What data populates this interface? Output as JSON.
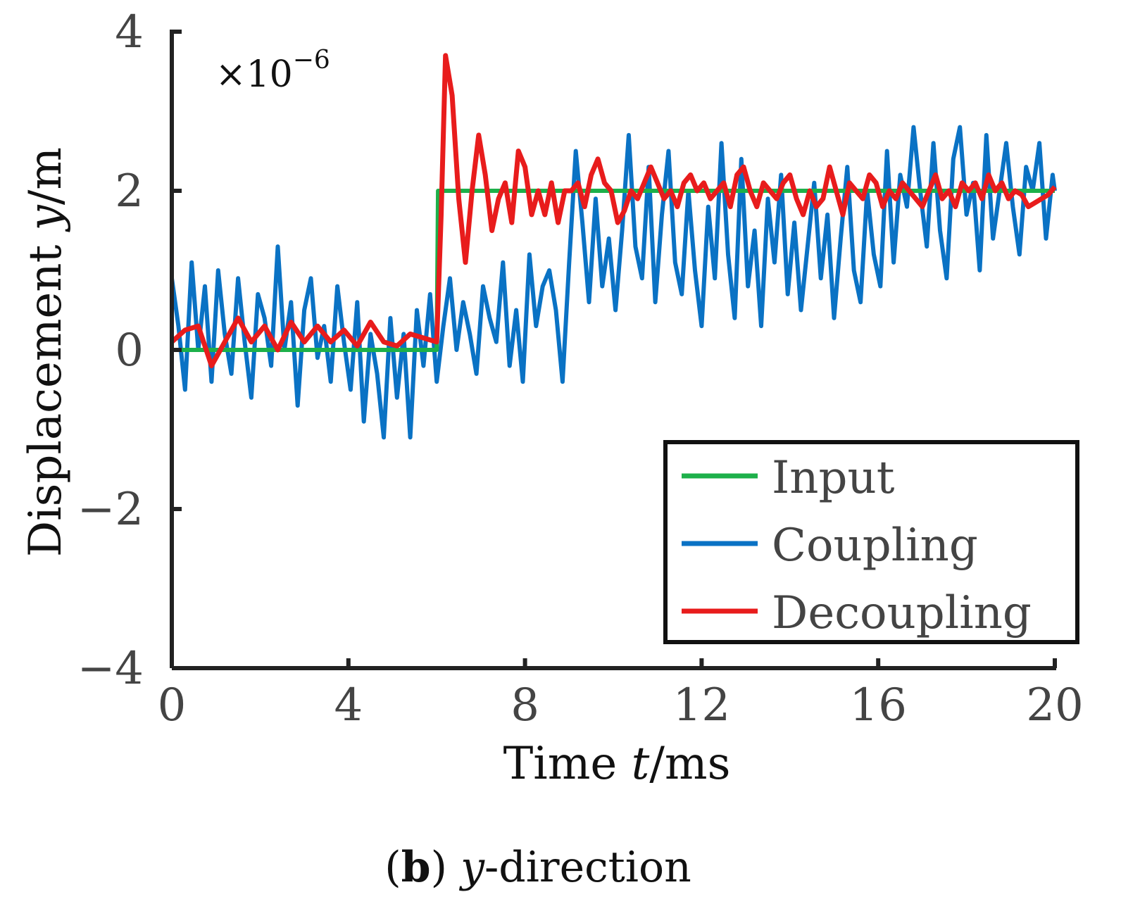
{
  "chart_data": {
    "type": "line",
    "title": "",
    "xlabel": "Time t/ms",
    "xlabel_parts": {
      "pre": "Time ",
      "var": "t",
      "post": "/ms"
    },
    "ylabel": "Displacement y/m",
    "ylabel_parts": {
      "pre": "Displacement ",
      "var": "y",
      "post": "/m"
    },
    "multiplier": {
      "base": "×10",
      "exp": "−6"
    },
    "xlim": [
      0,
      20
    ],
    "ylim": [
      -4,
      4
    ],
    "xticks": [
      0,
      4,
      8,
      12,
      16,
      20
    ],
    "yticks": [
      -4,
      -2,
      0,
      2,
      4
    ],
    "ytick_labels": [
      "−4",
      "−2",
      "0",
      "2",
      "4"
    ],
    "grid": false,
    "legend_position": "bottom-right",
    "series": [
      {
        "name": "Input",
        "color": "#1db04a",
        "x": [
          0,
          6,
          6.03,
          20
        ],
        "y": [
          0,
          0,
          2,
          2
        ]
      },
      {
        "name": "Coupling",
        "color": "#0a72c4",
        "x": [
          0,
          0.15,
          0.3,
          0.45,
          0.6,
          0.75,
          0.9,
          1.05,
          1.2,
          1.35,
          1.5,
          1.65,
          1.8,
          1.95,
          2.1,
          2.25,
          2.4,
          2.55,
          2.7,
          2.85,
          3.0,
          3.15,
          3.3,
          3.45,
          3.6,
          3.75,
          3.9,
          4.05,
          4.2,
          4.35,
          4.5,
          4.65,
          4.8,
          4.95,
          5.1,
          5.25,
          5.4,
          5.55,
          5.7,
          5.85,
          6.0,
          6.15,
          6.3,
          6.45,
          6.6,
          6.75,
          6.9,
          7.05,
          7.2,
          7.35,
          7.5,
          7.65,
          7.8,
          7.95,
          8.1,
          8.25,
          8.4,
          8.55,
          8.7,
          8.85,
          9.0,
          9.15,
          9.3,
          9.45,
          9.6,
          9.75,
          9.9,
          10.05,
          10.2,
          10.35,
          10.5,
          10.65,
          10.8,
          10.95,
          11.1,
          11.25,
          11.4,
          11.55,
          11.7,
          11.85,
          12.0,
          12.15,
          12.3,
          12.45,
          12.6,
          12.75,
          12.9,
          13.05,
          13.2,
          13.35,
          13.5,
          13.65,
          13.8,
          13.95,
          14.1,
          14.25,
          14.4,
          14.55,
          14.7,
          14.85,
          15.0,
          15.15,
          15.3,
          15.45,
          15.6,
          15.75,
          15.9,
          16.05,
          16.2,
          16.35,
          16.5,
          16.65,
          16.8,
          16.95,
          17.1,
          17.25,
          17.4,
          17.55,
          17.7,
          17.85,
          18.0,
          18.15,
          18.3,
          18.45,
          18.6,
          18.75,
          18.9,
          19.05,
          19.2,
          19.35,
          19.5,
          19.65,
          19.8,
          19.95,
          20.0
        ],
        "y": [
          0.9,
          0.3,
          -0.5,
          1.1,
          0.0,
          0.8,
          -0.4,
          1.0,
          0.2,
          -0.3,
          0.9,
          0.1,
          -0.6,
          0.7,
          0.4,
          -0.2,
          1.3,
          0.0,
          0.6,
          -0.7,
          0.5,
          0.9,
          -0.1,
          0.3,
          -0.4,
          0.8,
          0.1,
          -0.5,
          0.6,
          -0.9,
          0.2,
          -0.3,
          -1.1,
          0.4,
          -0.6,
          0.2,
          -1.1,
          0.5,
          -0.2,
          0.7,
          -0.4,
          0.3,
          0.9,
          0.0,
          0.6,
          0.2,
          -0.3,
          0.8,
          0.4,
          0.1,
          1.1,
          -0.2,
          0.5,
          -0.4,
          1.2,
          0.3,
          0.8,
          1.0,
          0.5,
          -0.4,
          1.1,
          2.5,
          1.6,
          0.6,
          1.9,
          0.8,
          1.4,
          0.5,
          1.5,
          2.7,
          1.3,
          0.9,
          2.3,
          0.6,
          1.7,
          2.5,
          1.1,
          0.7,
          2.0,
          1.0,
          0.3,
          1.8,
          0.9,
          2.6,
          1.2,
          0.4,
          2.4,
          0.8,
          1.5,
          0.3,
          1.9,
          1.1,
          2.2,
          0.7,
          1.6,
          0.5,
          1.3,
          2.1,
          0.9,
          1.7,
          0.4,
          1.4,
          2.3,
          1.0,
          0.6,
          2.0,
          1.2,
          0.8,
          2.5,
          1.1,
          2.2,
          1.8,
          2.8,
          2.0,
          1.3,
          2.6,
          1.5,
          0.9,
          2.4,
          2.8,
          1.7,
          2.1,
          1.0,
          2.7,
          1.4,
          2.0,
          2.6,
          1.8,
          1.2,
          2.3,
          2.0,
          2.6,
          1.4,
          2.2,
          2.0
        ]
      },
      {
        "name": "Decoupling",
        "color": "#e81c1c",
        "x": [
          0,
          0.3,
          0.6,
          0.9,
          1.2,
          1.5,
          1.8,
          2.1,
          2.4,
          2.7,
          3.0,
          3.3,
          3.6,
          3.9,
          4.2,
          4.5,
          4.8,
          5.1,
          5.4,
          5.7,
          6.0,
          6.1,
          6.2,
          6.35,
          6.5,
          6.65,
          6.8,
          6.95,
          7.1,
          7.25,
          7.4,
          7.55,
          7.7,
          7.85,
          8.0,
          8.15,
          8.3,
          8.45,
          8.6,
          8.75,
          8.9,
          9.05,
          9.2,
          9.35,
          9.5,
          9.65,
          9.8,
          9.95,
          10.1,
          10.25,
          10.4,
          10.55,
          10.7,
          10.85,
          11.0,
          11.15,
          11.3,
          11.45,
          11.6,
          11.75,
          11.9,
          12.05,
          12.2,
          12.35,
          12.5,
          12.65,
          12.8,
          12.95,
          13.1,
          13.25,
          13.4,
          13.55,
          13.7,
          13.85,
          14.0,
          14.15,
          14.3,
          14.45,
          14.6,
          14.75,
          14.9,
          15.05,
          15.2,
          15.35,
          15.5,
          15.65,
          15.8,
          15.95,
          16.1,
          16.25,
          16.4,
          16.55,
          16.7,
          16.85,
          17.0,
          17.15,
          17.3,
          17.45,
          17.6,
          17.75,
          17.9,
          18.05,
          18.2,
          18.35,
          18.5,
          18.65,
          18.8,
          18.95,
          19.1,
          19.25,
          19.4,
          19.55,
          19.7,
          19.85,
          20.0
        ],
        "y": [
          0.1,
          0.25,
          0.3,
          -0.2,
          0.1,
          0.4,
          0.1,
          0.3,
          0.0,
          0.35,
          0.1,
          0.3,
          0.1,
          0.25,
          0.05,
          0.35,
          0.1,
          0.05,
          0.2,
          0.15,
          0.1,
          1.7,
          3.7,
          3.2,
          1.9,
          1.1,
          2.0,
          2.7,
          2.2,
          1.5,
          1.9,
          2.1,
          1.6,
          2.5,
          2.3,
          1.7,
          2.0,
          1.7,
          2.1,
          1.6,
          2.0,
          2.0,
          2.1,
          1.8,
          2.2,
          2.4,
          2.1,
          2.0,
          1.6,
          1.75,
          2.0,
          1.9,
          2.1,
          2.3,
          2.1,
          1.9,
          2.0,
          1.8,
          2.1,
          2.2,
          2.0,
          2.1,
          1.9,
          2.0,
          2.1,
          1.8,
          2.2,
          2.3,
          2.0,
          1.8,
          2.1,
          2.0,
          1.9,
          2.1,
          2.2,
          1.9,
          1.7,
          2.0,
          1.8,
          1.9,
          2.3,
          2.0,
          1.7,
          2.1,
          2.0,
          1.9,
          2.2,
          2.1,
          1.8,
          2.0,
          1.9,
          2.1,
          2.0,
          1.9,
          1.8,
          2.0,
          2.2,
          1.9,
          2.0,
          1.8,
          2.1,
          2.0,
          2.1,
          1.9,
          2.2,
          2.0,
          2.1,
          1.9,
          2.0,
          1.95,
          1.8,
          1.85,
          1.9,
          1.95,
          2.05
        ]
      }
    ]
  },
  "caption": {
    "label": "b",
    "var": "y",
    "suffix": "-direction"
  }
}
